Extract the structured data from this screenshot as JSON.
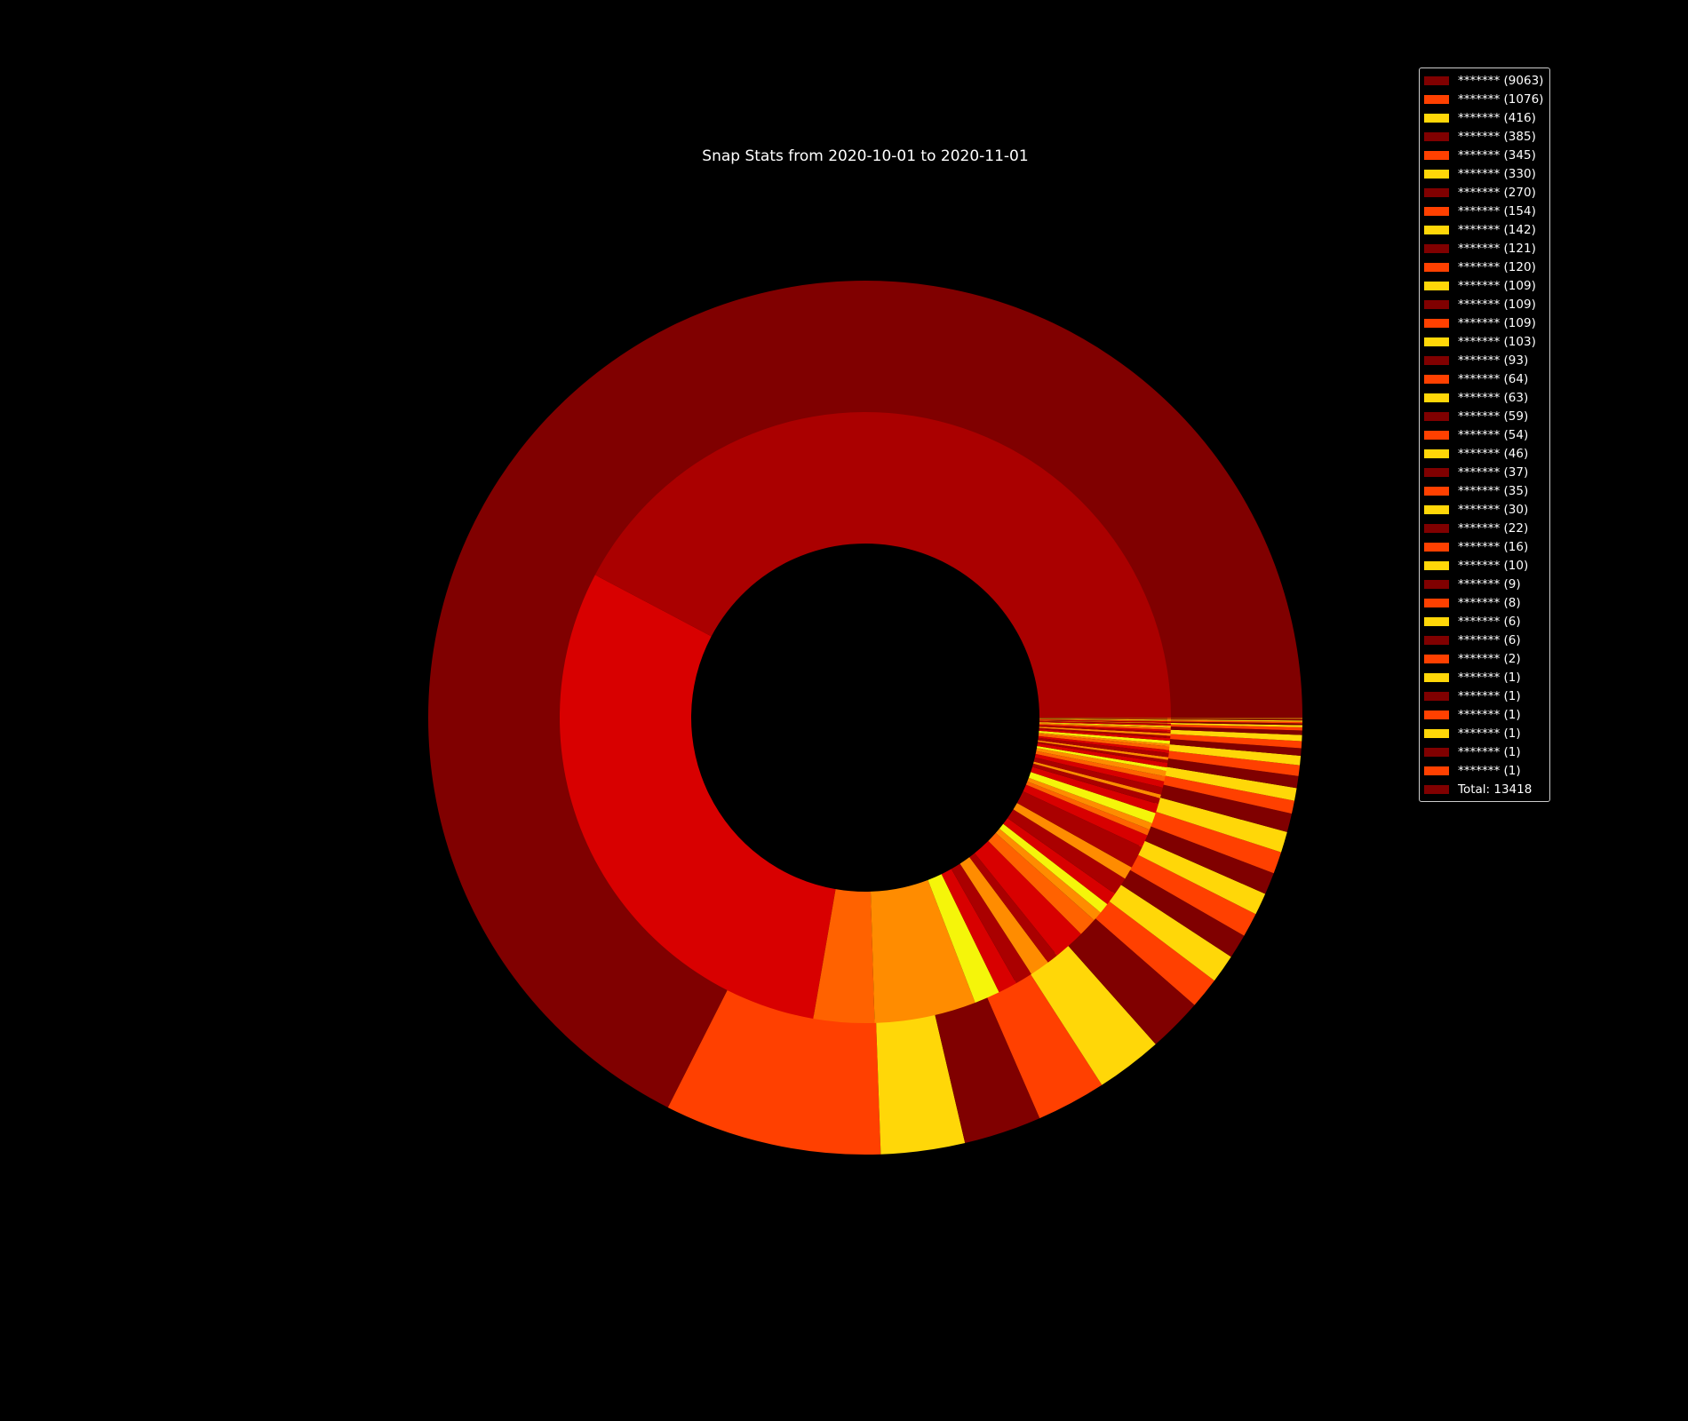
{
  "chart_data": {
    "type": "donut",
    "title": "Snap Stats from 2020-10-01 to 2020-11-01",
    "outer_ring": {
      "series_name": "",
      "values": [
        9063,
        1076,
        416,
        385,
        345,
        330,
        270,
        154,
        142,
        121,
        120,
        109,
        109,
        109,
        103,
        93,
        64,
        63,
        59,
        54,
        46,
        37,
        35,
        30,
        22,
        16,
        10,
        9,
        8,
        6,
        6,
        2,
        1,
        1,
        1,
        1,
        1,
        1
      ],
      "colors": [
        "#800000",
        "#ff4000",
        "#ffd708"
      ]
    },
    "inner_ring": {
      "values": [
        5300,
        3763,
        403,
        673,
        170,
        127,
        116,
        132,
        75,
        210,
        125,
        65,
        70,
        83,
        120,
        85,
        150,
        84,
        40,
        45,
        70,
        61,
        40,
        24,
        48,
        42,
        33,
        37,
        22,
        30,
        20,
        17,
        28,
        20,
        24,
        16,
        20,
        18,
        15,
        16,
        11,
        12,
        9,
        10,
        7,
        9,
        6,
        5,
        4,
        6,
        3,
        4,
        4,
        3,
        2,
        2,
        2,
        1,
        1,
        1,
        1
      ],
      "colors": [
        "#aa0000",
        "#d80000",
        "#ff6200",
        "#ff8c00",
        "#f5f50a",
        "#d80000",
        "#aa0000",
        "#ff8c00"
      ]
    },
    "legend": {
      "placement": "upper-right",
      "entries": [
        {
          "label": "******* (9063)",
          "color": "#800000"
        },
        {
          "label": "******* (1076)",
          "color": "#ff4000"
        },
        {
          "label": "******* (416)",
          "color": "#ffd708"
        },
        {
          "label": "******* (385)",
          "color": "#800000"
        },
        {
          "label": "******* (345)",
          "color": "#ff4000"
        },
        {
          "label": "******* (330)",
          "color": "#ffd708"
        },
        {
          "label": "******* (270)",
          "color": "#800000"
        },
        {
          "label": "******* (154)",
          "color": "#ff4000"
        },
        {
          "label": "******* (142)",
          "color": "#ffd708"
        },
        {
          "label": "******* (121)",
          "color": "#800000"
        },
        {
          "label": "******* (120)",
          "color": "#ff4000"
        },
        {
          "label": "******* (109)",
          "color": "#ffd708"
        },
        {
          "label": "******* (109)",
          "color": "#800000"
        },
        {
          "label": "******* (109)",
          "color": "#ff4000"
        },
        {
          "label": "******* (103)",
          "color": "#ffd708"
        },
        {
          "label": "******* (93)",
          "color": "#800000"
        },
        {
          "label": "******* (64)",
          "color": "#ff4000"
        },
        {
          "label": "******* (63)",
          "color": "#ffd708"
        },
        {
          "label": "******* (59)",
          "color": "#800000"
        },
        {
          "label": "******* (54)",
          "color": "#ff4000"
        },
        {
          "label": "******* (46)",
          "color": "#ffd708"
        },
        {
          "label": "******* (37)",
          "color": "#800000"
        },
        {
          "label": "******* (35)",
          "color": "#ff4000"
        },
        {
          "label": "******* (30)",
          "color": "#ffd708"
        },
        {
          "label": "******* (22)",
          "color": "#800000"
        },
        {
          "label": "******* (16)",
          "color": "#ff4000"
        },
        {
          "label": "******* (10)",
          "color": "#ffd708"
        },
        {
          "label": "******* (9)",
          "color": "#800000"
        },
        {
          "label": "******* (8)",
          "color": "#ff4000"
        },
        {
          "label": "******* (6)",
          "color": "#ffd708"
        },
        {
          "label": "******* (6)",
          "color": "#800000"
        },
        {
          "label": "******* (2)",
          "color": "#ff4000"
        },
        {
          "label": "******* (1)",
          "color": "#ffd708"
        },
        {
          "label": "******* (1)",
          "color": "#800000"
        },
        {
          "label": "******* (1)",
          "color": "#ff4000"
        },
        {
          "label": "******* (1)",
          "color": "#ffd708"
        },
        {
          "label": "******* (1)",
          "color": "#800000"
        },
        {
          "label": "******* (1)",
          "color": "#ff4000"
        },
        {
          "label": "Total: 13418",
          "color": "#800000"
        }
      ]
    },
    "background": "#000000",
    "grid": false
  }
}
